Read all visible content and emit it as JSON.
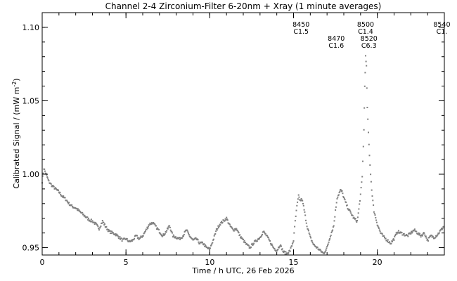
{
  "chart_data": {
    "type": "scatter",
    "title": "Channel 2-4   Zirconium-Filter   6-20nm + Xray   (1 minute averages)",
    "xlabel": "Time / h UTC, 26 Feb 2026",
    "ylabel": "Calibrated Signal / (mW m",
    "ylabel_sup": "-2",
    "ylabel_close": ")",
    "xlim": [
      0,
      24
    ],
    "ylim": [
      0.945,
      1.11
    ],
    "xticks": [
      0,
      5,
      10,
      15,
      20
    ],
    "xtick_labels": [
      "0",
      "5",
      "10",
      "15",
      "20"
    ],
    "yticks": [
      0.95,
      1.0,
      1.05,
      1.1
    ],
    "ytick_labels": [
      "0.95",
      "1.00",
      "1.05",
      "1.10"
    ],
    "grid": false,
    "marker_color": "#808080",
    "annotations": [
      {
        "x": 15.45,
        "line1": "8450",
        "line2": "C1.5",
        "row": 0
      },
      {
        "x": 17.55,
        "line1": "8470",
        "line2": "C1.6",
        "row": 1
      },
      {
        "x": 19.3,
        "line1": "8500",
        "line2": "C1.4",
        "row": 0
      },
      {
        "x": 19.5,
        "line1": "8520",
        "line2": "C6.3",
        "row": 1
      },
      {
        "x": 23.85,
        "line1": "8540",
        "line2": "C1.",
        "row": 0
      }
    ],
    "series": [
      {
        "points": [
          [
            0.0,
            0.995
          ],
          [
            0.1,
            1.004
          ],
          [
            0.2,
            1.001
          ],
          [
            0.3,
            0.998
          ],
          [
            0.4,
            0.995
          ],
          [
            0.6,
            0.992
          ],
          [
            0.8,
            0.99
          ],
          [
            1.0,
            0.988
          ],
          [
            1.2,
            0.985
          ],
          [
            1.4,
            0.983
          ],
          [
            1.6,
            0.98
          ],
          [
            1.8,
            0.978
          ],
          [
            2.0,
            0.977
          ],
          [
            2.2,
            0.975
          ],
          [
            2.4,
            0.973
          ],
          [
            2.6,
            0.971
          ],
          [
            2.8,
            0.969
          ],
          [
            3.0,
            0.968
          ],
          [
            3.2,
            0.966
          ],
          [
            3.4,
            0.963
          ],
          [
            3.6,
            0.968
          ],
          [
            3.8,
            0.964
          ],
          [
            4.0,
            0.961
          ],
          [
            4.2,
            0.96
          ],
          [
            4.4,
            0.959
          ],
          [
            4.6,
            0.957
          ],
          [
            4.8,
            0.955
          ],
          [
            5.0,
            0.956
          ],
          [
            5.2,
            0.954
          ],
          [
            5.4,
            0.955
          ],
          [
            5.6,
            0.958
          ],
          [
            5.8,
            0.956
          ],
          [
            6.0,
            0.958
          ],
          [
            6.2,
            0.962
          ],
          [
            6.4,
            0.966
          ],
          [
            6.6,
            0.967
          ],
          [
            6.8,
            0.964
          ],
          [
            7.0,
            0.961
          ],
          [
            7.2,
            0.958
          ],
          [
            7.4,
            0.961
          ],
          [
            7.6,
            0.965
          ],
          [
            7.8,
            0.958
          ],
          [
            8.0,
            0.957
          ],
          [
            8.2,
            0.956
          ],
          [
            8.4,
            0.958
          ],
          [
            8.6,
            0.962
          ],
          [
            8.8,
            0.958
          ],
          [
            9.0,
            0.955
          ],
          [
            9.2,
            0.956
          ],
          [
            9.4,
            0.953
          ],
          [
            9.6,
            0.953
          ],
          [
            9.8,
            0.95
          ],
          [
            10.0,
            0.949
          ],
          [
            10.2,
            0.955
          ],
          [
            10.4,
            0.962
          ],
          [
            10.6,
            0.966
          ],
          [
            10.8,
            0.968
          ],
          [
            11.0,
            0.97
          ],
          [
            11.2,
            0.965
          ],
          [
            11.4,
            0.962
          ],
          [
            11.6,
            0.963
          ],
          [
            11.8,
            0.958
          ],
          [
            12.0,
            0.955
          ],
          [
            12.2,
            0.952
          ],
          [
            12.4,
            0.95
          ],
          [
            12.6,
            0.953
          ],
          [
            12.8,
            0.955
          ],
          [
            13.0,
            0.957
          ],
          [
            13.2,
            0.961
          ],
          [
            13.4,
            0.958
          ],
          [
            13.6,
            0.954
          ],
          [
            13.8,
            0.95
          ],
          [
            14.0,
            0.948
          ],
          [
            14.2,
            0.952
          ],
          [
            14.4,
            0.947
          ],
          [
            14.6,
            0.946
          ],
          [
            14.8,
            0.948
          ],
          [
            15.0,
            0.955
          ],
          [
            15.1,
            0.968
          ],
          [
            15.2,
            0.978
          ],
          [
            15.3,
            0.985
          ],
          [
            15.4,
            0.982
          ],
          [
            15.5,
            0.983
          ],
          [
            15.6,
            0.978
          ],
          [
            15.8,
            0.965
          ],
          [
            16.0,
            0.957
          ],
          [
            16.2,
            0.952
          ],
          [
            16.4,
            0.95
          ],
          [
            16.6,
            0.948
          ],
          [
            16.8,
            0.946
          ],
          [
            17.0,
            0.95
          ],
          [
            17.2,
            0.958
          ],
          [
            17.4,
            0.965
          ],
          [
            17.5,
            0.975
          ],
          [
            17.6,
            0.984
          ],
          [
            17.8,
            0.989
          ],
          [
            17.9,
            0.988
          ],
          [
            18.0,
            0.984
          ],
          [
            18.2,
            0.978
          ],
          [
            18.4,
            0.974
          ],
          [
            18.6,
            0.97
          ],
          [
            18.8,
            0.968
          ],
          [
            18.9,
            0.976
          ],
          [
            19.0,
            0.986
          ],
          [
            19.1,
            0.998
          ],
          [
            19.2,
            1.03
          ],
          [
            19.25,
            1.06
          ],
          [
            19.3,
            1.08
          ],
          [
            19.35,
            1.073
          ],
          [
            19.4,
            1.045
          ],
          [
            19.5,
            1.02
          ],
          [
            19.6,
            1.0
          ],
          [
            19.7,
            0.985
          ],
          [
            19.8,
            0.975
          ],
          [
            20.0,
            0.966
          ],
          [
            20.2,
            0.96
          ],
          [
            20.4,
            0.957
          ],
          [
            20.6,
            0.955
          ],
          [
            20.8,
            0.953
          ],
          [
            21.0,
            0.956
          ],
          [
            21.2,
            0.961
          ],
          [
            21.4,
            0.96
          ],
          [
            21.6,
            0.959
          ],
          [
            21.8,
            0.958
          ],
          [
            22.0,
            0.96
          ],
          [
            22.2,
            0.962
          ],
          [
            22.4,
            0.96
          ],
          [
            22.6,
            0.958
          ],
          [
            22.8,
            0.96
          ],
          [
            23.0,
            0.955
          ],
          [
            23.2,
            0.958
          ],
          [
            23.4,
            0.957
          ],
          [
            23.6,
            0.959
          ],
          [
            23.8,
            0.962
          ],
          [
            24.0,
            0.965
          ]
        ]
      }
    ]
  }
}
